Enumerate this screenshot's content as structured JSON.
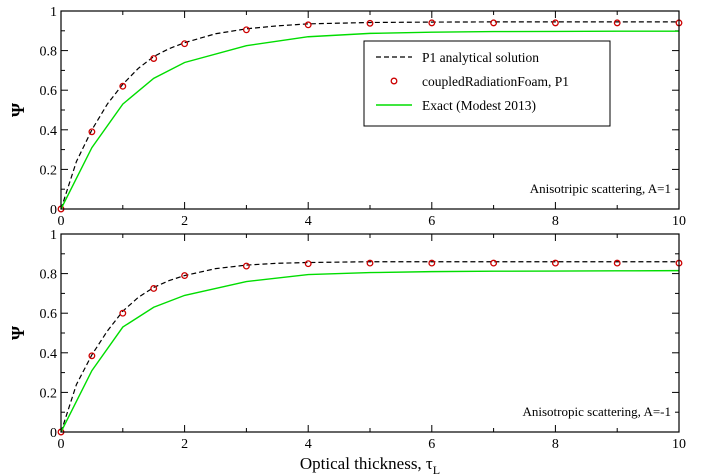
{
  "chart_data": [
    {
      "type": "line",
      "xlabel": "",
      "ylabel": "Ψ",
      "xlim": [
        0,
        10
      ],
      "ylim": [
        0,
        1
      ],
      "xticks": [
        "0",
        "2",
        "4",
        "6",
        "8",
        "10"
      ],
      "yticks": [
        "0",
        "0.2",
        "0.4",
        "0.6",
        "0.8",
        "1"
      ],
      "annotation": "Anisotripic scattering, A=1",
      "legend_position": "top-right",
      "series": [
        {
          "name": "P1 analytical solution",
          "style": "dashed",
          "color": "#000000",
          "x": [
            0,
            0.25,
            0.5,
            0.75,
            1,
            1.25,
            1.5,
            1.75,
            2,
            2.5,
            3,
            3.5,
            4,
            5,
            6,
            7,
            8,
            9,
            10
          ],
          "y": [
            0,
            0.24,
            0.4,
            0.53,
            0.63,
            0.71,
            0.77,
            0.81,
            0.84,
            0.885,
            0.91,
            0.925,
            0.935,
            0.942,
            0.944,
            0.945,
            0.945,
            0.945,
            0.945
          ]
        },
        {
          "name": "coupledRadiationFoam, P1",
          "style": "markers",
          "color": "#cc0000",
          "x": [
            0,
            0.5,
            1,
            1.5,
            2,
            3,
            4,
            5,
            6,
            7,
            8,
            9,
            10
          ],
          "y": [
            0,
            0.39,
            0.62,
            0.76,
            0.835,
            0.905,
            0.93,
            0.938,
            0.94,
            0.94,
            0.94,
            0.94,
            0.94
          ]
        },
        {
          "name": "Exact (Modest 2013)",
          "style": "solid",
          "color": "#00dd00",
          "x": [
            0,
            0.5,
            1,
            1.5,
            2,
            3,
            4,
            5,
            6,
            7,
            8,
            9,
            10
          ],
          "y": [
            0,
            0.31,
            0.53,
            0.66,
            0.74,
            0.825,
            0.87,
            0.887,
            0.893,
            0.896,
            0.897,
            0.898,
            0.898
          ]
        }
      ]
    },
    {
      "type": "line",
      "xlabel": "Optical thickness, τL",
      "ylabel": "Ψ",
      "xlim": [
        0,
        10
      ],
      "ylim": [
        0,
        1
      ],
      "xticks": [
        "0",
        "2",
        "4",
        "6",
        "8",
        "10"
      ],
      "yticks": [
        "0",
        "0.2",
        "0.4",
        "0.6",
        "0.8",
        "1"
      ],
      "annotation": "Anisotropic scattering, A=-1",
      "series": [
        {
          "name": "P1 analytical solution",
          "style": "dashed",
          "color": "#000000",
          "x": [
            0,
            0.25,
            0.5,
            0.75,
            1,
            1.25,
            1.5,
            1.75,
            2,
            2.5,
            3,
            3.5,
            4,
            5,
            6,
            7,
            8,
            9,
            10
          ],
          "y": [
            0,
            0.24,
            0.39,
            0.51,
            0.61,
            0.68,
            0.73,
            0.765,
            0.79,
            0.825,
            0.843,
            0.852,
            0.856,
            0.86,
            0.86,
            0.86,
            0.86,
            0.86,
            0.86
          ]
        },
        {
          "name": "coupledRadiationFoam, P1",
          "style": "markers",
          "color": "#cc0000",
          "x": [
            0,
            0.5,
            1,
            1.5,
            2,
            3,
            4,
            5,
            6,
            7,
            8,
            9,
            10
          ],
          "y": [
            0,
            0.385,
            0.6,
            0.725,
            0.79,
            0.838,
            0.85,
            0.853,
            0.853,
            0.853,
            0.853,
            0.853,
            0.853
          ]
        },
        {
          "name": "Exact (Modest 2013)",
          "style": "solid",
          "color": "#00dd00",
          "x": [
            0,
            0.5,
            1,
            1.5,
            2,
            3,
            4,
            5,
            6,
            7,
            8,
            9,
            10
          ],
          "y": [
            0,
            0.31,
            0.53,
            0.63,
            0.69,
            0.76,
            0.795,
            0.805,
            0.81,
            0.812,
            0.813,
            0.814,
            0.815
          ]
        }
      ]
    }
  ]
}
